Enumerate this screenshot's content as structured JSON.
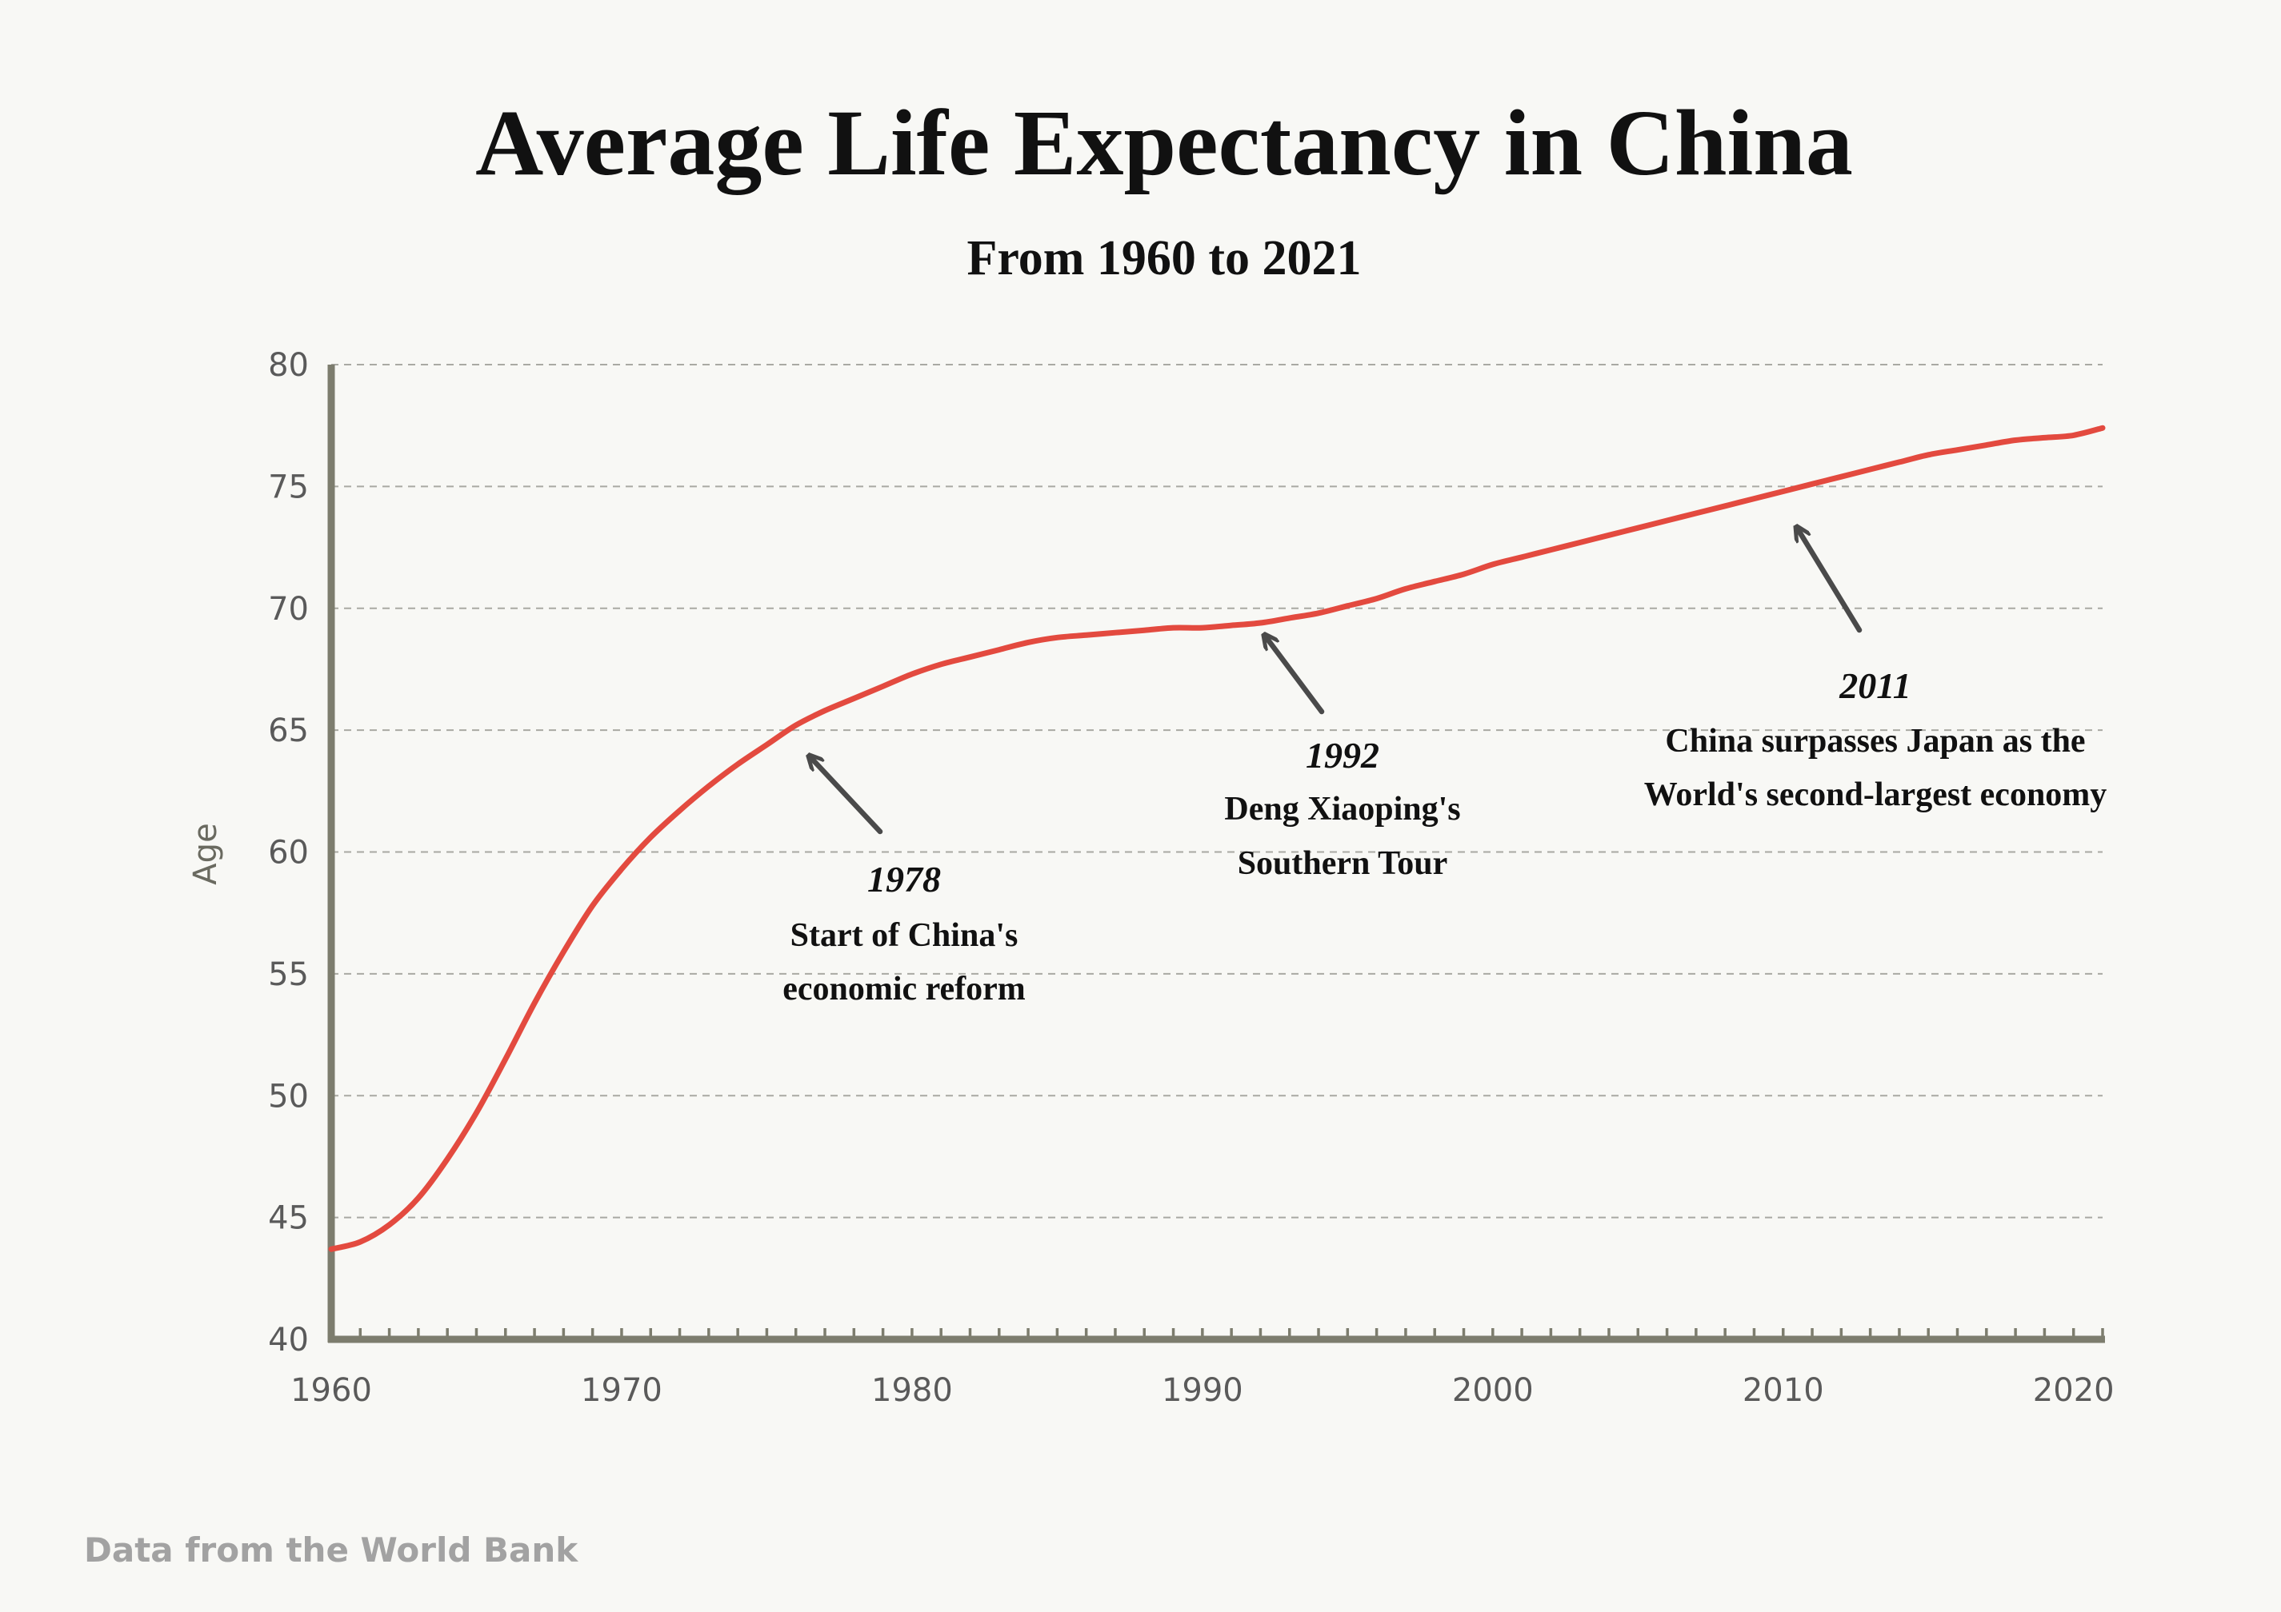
{
  "chart_data": {
    "type": "line",
    "title": "Average Life Expectancy in China",
    "subtitle": "From 1960 to 2021",
    "xlabel": "",
    "ylabel": "Age",
    "xlim": [
      1960,
      2021
    ],
    "ylim": [
      40,
      80
    ],
    "x_ticks": [
      "1960",
      "1970",
      "1980",
      "1990",
      "2000",
      "2010",
      "2020"
    ],
    "y_ticks": [
      "40",
      "45",
      "50",
      "55",
      "60",
      "65",
      "70",
      "75",
      "80"
    ],
    "grid": "horizontal dashed",
    "line_color": "#e34a3f",
    "series": [
      {
        "x": [
          1960,
          1961,
          1962,
          1963,
          1964,
          1965,
          1966,
          1967,
          1968,
          1969,
          1970,
          1971,
          1972,
          1973,
          1974,
          1975,
          1976,
          1977,
          1978,
          1979,
          1980,
          1981,
          1982,
          1983,
          1984,
          1985,
          1986,
          1987,
          1988,
          1989,
          1990,
          1991,
          1992,
          1993,
          1994,
          1995,
          1996,
          1997,
          1998,
          1999,
          2000,
          2001,
          2002,
          2003,
          2004,
          2005,
          2006,
          2007,
          2008,
          2009,
          2010,
          2011,
          2012,
          2013,
          2014,
          2015,
          2016,
          2017,
          2018,
          2019,
          2020,
          2021
        ],
        "values": [
          43.7,
          44.0,
          44.7,
          45.8,
          47.4,
          49.3,
          51.5,
          53.8,
          55.9,
          57.8,
          59.3,
          60.6,
          61.7,
          62.7,
          63.6,
          64.4,
          65.2,
          65.8,
          66.3,
          66.8,
          67.3,
          67.7,
          68.0,
          68.3,
          68.6,
          68.8,
          68.9,
          69.0,
          69.1,
          69.2,
          69.2,
          69.3,
          69.4,
          69.6,
          69.8,
          70.1,
          70.4,
          70.8,
          71.1,
          71.4,
          71.8,
          72.1,
          72.4,
          72.7,
          73.0,
          73.3,
          73.6,
          73.9,
          74.2,
          74.5,
          74.8,
          75.1,
          75.4,
          75.7,
          76.0,
          76.3,
          76.5,
          76.7,
          76.9,
          77.0,
          77.1,
          77.4
        ]
      }
    ],
    "annotations": [
      {
        "year": "1978",
        "lines": [
          "Start of China's",
          "economic reform"
        ]
      },
      {
        "year": "1992",
        "lines": [
          "Deng Xiaoping's",
          "Southern Tour"
        ]
      },
      {
        "year": "2011",
        "lines": [
          "China surpasses Japan as the",
          "World's second-largest economy"
        ]
      }
    ]
  },
  "source": "Data from the World Bank"
}
